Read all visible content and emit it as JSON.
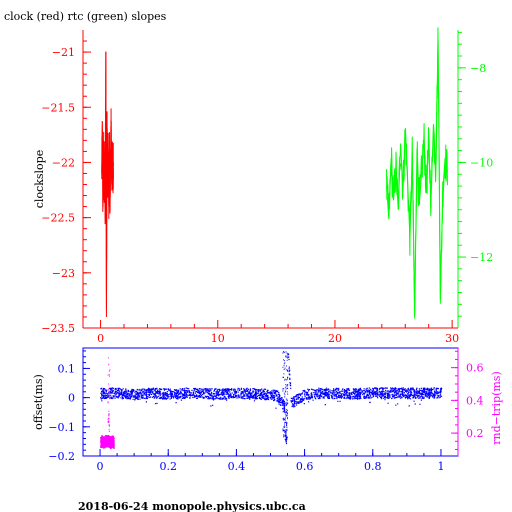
{
  "title": "clock (red) rtc (green) slopes",
  "footer": "2018-06-24 monopole.physics.ubc.ca",
  "colors": {
    "clock": "#ff0000",
    "rtc": "#00ff00",
    "offset": "#0000ff",
    "rndtrip": "#ff00ff",
    "frame": "#000000"
  },
  "chart_data": [
    {
      "type": "line",
      "title": "clock (red) rtc (green) slopes",
      "xlim": [
        -1.5,
        30.5
      ],
      "x_ticks": [
        0,
        10,
        20,
        30
      ],
      "ylabel": "clockslope",
      "ylim": [
        -23.5,
        -20.8
      ],
      "y_ticks": [
        -21,
        -21.5,
        -22,
        -22.5,
        -23,
        -23.5
      ],
      "y_tick_labels": [
        "−21",
        "−21.5",
        "−22",
        "−22.5",
        "−23",
        "−23.5"
      ],
      "y2lim": [
        -13.5,
        -7.2
      ],
      "y2_ticks": [
        -8,
        -10,
        -12
      ],
      "y2_tick_labels": [
        "−8",
        "−10",
        "−12"
      ],
      "series": [
        {
          "key": "clock",
          "axis": "left",
          "x": [
            0.1,
            0.15,
            0.2,
            0.25,
            0.3,
            0.35,
            0.4,
            0.45,
            0.5,
            0.55,
            0.6,
            0.65,
            0.7,
            0.75,
            0.8,
            0.85,
            0.9,
            0.95,
            1.0,
            1.05,
            1.1
          ],
          "y": [
            -22.1,
            -21.7,
            -22.4,
            -21.8,
            -22.3,
            -21.9,
            -22.5,
            -21.0,
            -23.4,
            -21.7,
            -22.2,
            -21.9,
            -22.4,
            -21.8,
            -22.3,
            -22.0,
            -21.7,
            -22.2,
            -21.9,
            -22.1,
            -22.0
          ]
        },
        {
          "key": "rtc",
          "axis": "right",
          "x": [
            24.4,
            24.6,
            24.8,
            25.0,
            25.2,
            25.4,
            25.6,
            25.8,
            26.0,
            26.2,
            26.4,
            26.6,
            26.8,
            27.0,
            27.2,
            27.4,
            27.6,
            27.8,
            28.0,
            28.2,
            28.4,
            28.6,
            28.8,
            29.0,
            29.2,
            29.4,
            29.6
          ],
          "y": [
            -10.5,
            -11.2,
            -9.9,
            -10.8,
            -10.1,
            -11.0,
            -9.6,
            -10.6,
            -9.3,
            -10.4,
            -11.6,
            -9.8,
            -13.3,
            -9.7,
            -10.9,
            -10.2,
            -9.5,
            -10.6,
            -9.6,
            -10.8,
            -9.2,
            -10.1,
            -7.4,
            -12.9,
            -10.6,
            -9.9,
            -10.2
          ]
        }
      ]
    },
    {
      "type": "scatter",
      "xlim": [
        -0.05,
        1.05
      ],
      "x_ticks": [
        0,
        0.2,
        0.4,
        0.6,
        0.8,
        1
      ],
      "ylabel": "offset(ms)",
      "ylim": [
        -0.2,
        0.17
      ],
      "y_ticks": [
        0.1,
        0,
        -0.1,
        -0.2
      ],
      "y_tick_labels": [
        "0.1",
        "0",
        "−0.1",
        "−0.2"
      ],
      "y2label": "rnd−trip(ms)",
      "y2lim": [
        0.06,
        0.72
      ],
      "y2_ticks": [
        0.6,
        0.4,
        0.2
      ],
      "y2_tick_labels": [
        "0.6",
        "0.4",
        "0.2"
      ],
      "series": [
        {
          "key": "offset",
          "axis": "left",
          "x": [
            0,
            0.05,
            0.1,
            0.15,
            0.2,
            0.25,
            0.3,
            0.35,
            0.4,
            0.45,
            0.5,
            0.52,
            0.54,
            0.545,
            0.55,
            0.56,
            0.6,
            0.65,
            0.7,
            0.75,
            0.8,
            0.85,
            0.9,
            0.95,
            1.0
          ],
          "y": [
            0.015,
            0.015,
            0.01,
            0.015,
            0.012,
            0.015,
            0.014,
            0.012,
            0.015,
            0.013,
            0.01,
            0.005,
            -0.03,
            -0.15,
            0.16,
            -0.02,
            0.012,
            0.015,
            0.014,
            0.013,
            0.016,
            0.015,
            0.016,
            0.015,
            0.017
          ],
          "spread": 0.018
        },
        {
          "key": "rndtrip",
          "axis": "right",
          "x": [
            0.0,
            0.005,
            0.01,
            0.015,
            0.02,
            0.025,
            0.03,
            0.035,
            0.04
          ],
          "y": [
            0.14,
            0.17,
            0.13,
            0.16,
            0.15,
            0.66,
            0.12,
            0.15,
            0.14
          ],
          "spread": 0.035
        }
      ]
    }
  ]
}
